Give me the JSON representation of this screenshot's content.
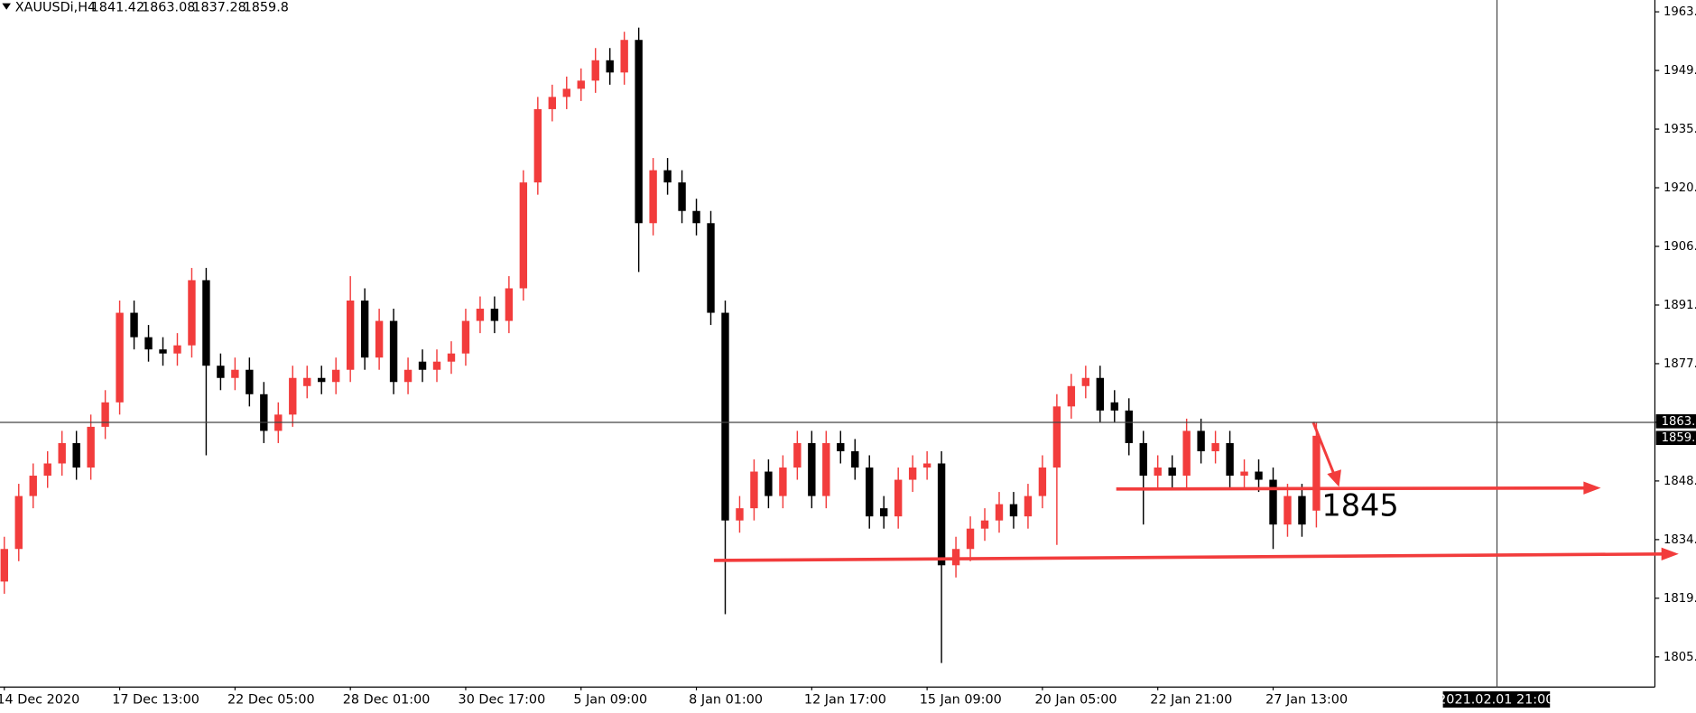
{
  "chart_data": {
    "type": "candlestick",
    "title": "XAUUSDi,H4",
    "up_color": "#f23c3c",
    "down_color": "#000000",
    "categories": [
      "14 Dec 2020",
      null,
      null,
      null,
      null,
      null,
      null,
      null,
      "17 Dec 13:00",
      null,
      null,
      null,
      null,
      null,
      null,
      null,
      "22 Dec 05:00",
      null,
      null,
      null,
      null,
      null,
      null,
      null,
      "28 Dec 01:00",
      null,
      null,
      null,
      null,
      null,
      null,
      null,
      "30 Dec 17:00",
      null,
      null,
      null,
      null,
      null,
      null,
      null,
      "5 Jan 09:00",
      null,
      null,
      null,
      null,
      null,
      null,
      null,
      "8 Jan 01:00",
      null,
      null,
      null,
      null,
      null,
      null,
      null,
      "12 Jan 17:00",
      null,
      null,
      null,
      null,
      null,
      null,
      null,
      "15 Jan 09:00",
      null,
      null,
      null,
      null,
      null,
      null,
      null,
      "20 Jan 05:00",
      null,
      null,
      null,
      null,
      null,
      null,
      null,
      "22 Jan 21:00",
      null,
      null,
      null,
      null,
      null,
      null,
      null,
      "27 Jan 13:00",
      null,
      null,
      null
    ],
    "open": [
      1824,
      1832,
      1845,
      1850,
      1853,
      1858,
      1852,
      1862,
      1868,
      1890,
      1884,
      1881,
      1880,
      1882,
      1898,
      1877,
      1874,
      1876,
      1870,
      1861,
      1865,
      1872,
      1874,
      1873,
      1876,
      1893,
      1879,
      1888,
      1873,
      1878,
      1876,
      1878,
      1880,
      1888,
      1891,
      1888,
      1896,
      1922,
      1940,
      1943,
      1945,
      1947,
      1952,
      1949,
      1957,
      1912,
      1925,
      1922,
      1915,
      1912,
      1890,
      1839,
      1842,
      1851,
      1845,
      1852,
      1858,
      1845,
      1858,
      1856,
      1852,
      1842,
      1840,
      1849,
      1852,
      1853,
      1828,
      1832,
      1837,
      1839,
      1843,
      1840,
      1845,
      1852,
      1867,
      1872,
      1874,
      1868,
      1866,
      1858,
      1850,
      1852,
      1850,
      1861,
      1856,
      1858,
      1850,
      1851,
      1849,
      1838,
      1845,
      1841.42
    ],
    "high": [
      1835,
      1848,
      1853,
      1856,
      1861,
      1861,
      1865,
      1871,
      1893,
      1893,
      1887,
      1884,
      1885,
      1901,
      1901,
      1880,
      1879,
      1879,
      1873,
      1868,
      1877,
      1877,
      1877,
      1879,
      1899,
      1896,
      1891,
      1891,
      1879,
      1881,
      1881,
      1883,
      1891,
      1894,
      1894,
      1899,
      1925,
      1943,
      1946,
      1948,
      1950,
      1955,
      1955,
      1959,
      1960,
      1928,
      1928,
      1925,
      1918,
      1915,
      1893,
      1845,
      1854,
      1854,
      1855,
      1861,
      1861,
      1861,
      1861,
      1859,
      1855,
      1845,
      1852,
      1855,
      1856,
      1856,
      1835,
      1840,
      1842,
      1846,
      1846,
      1848,
      1855,
      1870,
      1875,
      1877,
      1877,
      1871,
      1869,
      1861,
      1855,
      1855,
      1864,
      1864,
      1861,
      1861,
      1854,
      1854,
      1852,
      1848,
      1848,
      1863.08
    ],
    "low": [
      1821,
      1829,
      1842,
      1847,
      1850,
      1849,
      1849,
      1859,
      1865,
      1881,
      1878,
      1877,
      1877,
      1879,
      1855,
      1871,
      1871,
      1867,
      1858,
      1858,
      1862,
      1869,
      1870,
      1870,
      1873,
      1876,
      1876,
      1870,
      1870,
      1873,
      1873,
      1875,
      1877,
      1885,
      1885,
      1885,
      1893,
      1919,
      1937,
      1940,
      1942,
      1944,
      1946,
      1946,
      1900,
      1909,
      1919,
      1912,
      1909,
      1887,
      1816,
      1836,
      1839,
      1842,
      1842,
      1849,
      1842,
      1842,
      1853,
      1849,
      1837,
      1837,
      1837,
      1846,
      1849,
      1804,
      1825,
      1829,
      1834,
      1836,
      1837,
      1837,
      1842,
      1833,
      1864,
      1869,
      1863,
      1863,
      1855,
      1838,
      1847,
      1847,
      1847,
      1853,
      1853,
      1847,
      1847,
      1846,
      1832,
      1835,
      1835,
      1837.28
    ],
    "close": [
      1832,
      1845,
      1850,
      1853,
      1858,
      1852,
      1862,
      1868,
      1890,
      1884,
      1881,
      1880,
      1882,
      1898,
      1877,
      1874,
      1876,
      1870,
      1861,
      1865,
      1874,
      1874,
      1873,
      1876,
      1893,
      1879,
      1888,
      1873,
      1876,
      1876,
      1878,
      1880,
      1888,
      1891,
      1888,
      1896,
      1922,
      1940,
      1943,
      1945,
      1947,
      1952,
      1949,
      1957,
      1912,
      1925,
      1922,
      1915,
      1912,
      1890,
      1839,
      1842,
      1851,
      1845,
      1852,
      1858,
      1845,
      1858,
      1856,
      1852,
      1840,
      1840,
      1849,
      1852,
      1853,
      1828,
      1832,
      1837,
      1839,
      1843,
      1840,
      1845,
      1852,
      1867,
      1872,
      1874,
      1866,
      1866,
      1858,
      1850,
      1852,
      1850,
      1861,
      1856,
      1858,
      1850,
      1851,
      1849,
      1838,
      1845,
      1838,
      1859.8
    ],
    "ylim": [
      1798.1,
      1966.8
    ],
    "yticks": [
      {
        "value": 1805.5,
        "label": "1805."
      },
      {
        "value": 1819.9,
        "label": "1819."
      },
      {
        "value": 1834.3,
        "label": "1834."
      },
      {
        "value": 1848.7,
        "label": "1848."
      },
      {
        "value": 1863.1,
        "label": "1863."
      },
      {
        "value": 1877.5,
        "label": "1877."
      },
      {
        "value": 1891.9,
        "label": "1891."
      },
      {
        "value": 1906.3,
        "label": "1906."
      },
      {
        "value": 1920.7,
        "label": "1920."
      },
      {
        "value": 1935.1,
        "label": "1935."
      },
      {
        "value": 1949.5,
        "label": "1949."
      },
      {
        "value": 1963.9,
        "label": "1963."
      }
    ],
    "price_labels": [
      {
        "value": 1863.08,
        "label": "1863."
      },
      {
        "value": 1859.8,
        "label": "1859."
      }
    ],
    "crosshair_time": "2021.02.01 21:00",
    "annotation": "1845"
  }
}
